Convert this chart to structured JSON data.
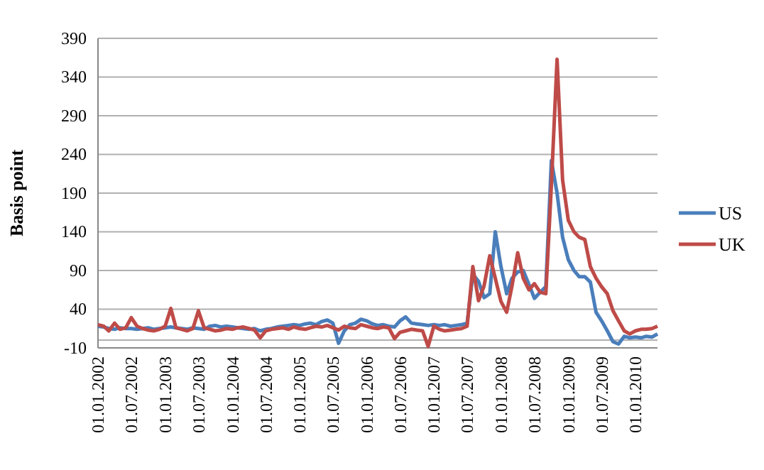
{
  "chart_data": {
    "type": "line",
    "ylabel": "Basis point",
    "ylim": [
      -10,
      390
    ],
    "yticks": [
      -10,
      {
        "value": 0,
        "label": null
      },
      40,
      90,
      140,
      190,
      240,
      290,
      340,
      390
    ],
    "grid": "y",
    "legend": "right",
    "xlim": [
      "2002-01",
      "2010-05"
    ],
    "xticks": [
      {
        "value": "2002-01-01",
        "label": "01.01.2002"
      },
      {
        "value": "2002-07-01",
        "label": "01.07.2002"
      },
      {
        "value": "2003-01-01",
        "label": "01.01.2003"
      },
      {
        "value": "2003-07-01",
        "label": "01.07.2003"
      },
      {
        "value": "2004-01-01",
        "label": "01.01.2004"
      },
      {
        "value": "2004-07-01",
        "label": "01.07.2004"
      },
      {
        "value": "2005-01-01",
        "label": "01.01.2005"
      },
      {
        "value": "2005-07-01",
        "label": "01.07.2005"
      },
      {
        "value": "2006-01-01",
        "label": "01.01.2006"
      },
      {
        "value": "2006-07-01",
        "label": "01.07.2006"
      },
      {
        "value": "2007-01-01",
        "label": "01.01.2007"
      },
      {
        "value": "2007-07-01",
        "label": "01.07.2007"
      },
      {
        "value": "2008-01-01",
        "label": "01.01.2008"
      },
      {
        "value": "2008-07-01",
        "label": "01.07.2008"
      },
      {
        "value": "2009-01-01",
        "label": "01.01.2009"
      },
      {
        "value": "2009-07-01",
        "label": "01.07.2009"
      },
      {
        "value": "2010-01-01",
        "label": "01.01.2010"
      }
    ],
    "x": [
      "2002-01",
      "2002-02",
      "2002-03",
      "2002-04",
      "2002-05",
      "2002-06",
      "2002-07",
      "2002-08",
      "2002-09",
      "2002-10",
      "2002-11",
      "2002-12",
      "2003-01",
      "2003-02",
      "2003-03",
      "2003-04",
      "2003-05",
      "2003-06",
      "2003-07",
      "2003-08",
      "2003-09",
      "2003-10",
      "2003-11",
      "2003-12",
      "2004-01",
      "2004-02",
      "2004-03",
      "2004-04",
      "2004-05",
      "2004-06",
      "2004-07",
      "2004-08",
      "2004-09",
      "2004-10",
      "2004-11",
      "2004-12",
      "2005-01",
      "2005-02",
      "2005-03",
      "2005-04",
      "2005-05",
      "2005-06",
      "2005-07",
      "2005-08",
      "2005-09",
      "2005-10",
      "2005-11",
      "2005-12",
      "2006-01",
      "2006-02",
      "2006-03",
      "2006-04",
      "2006-05",
      "2006-06",
      "2006-07",
      "2006-08",
      "2006-09",
      "2006-10",
      "2006-11",
      "2006-12",
      "2007-01",
      "2007-02",
      "2007-03",
      "2007-04",
      "2007-05",
      "2007-06",
      "2007-07",
      "2007-08",
      "2007-09",
      "2007-10",
      "2007-11",
      "2007-12",
      "2008-01",
      "2008-02",
      "2008-03",
      "2008-04",
      "2008-05",
      "2008-06",
      "2008-07",
      "2008-08",
      "2008-09",
      "2008-10",
      "2008-11",
      "2008-12",
      "2009-01",
      "2009-02",
      "2009-03",
      "2009-04",
      "2009-05",
      "2009-06",
      "2009-07",
      "2009-08",
      "2009-09",
      "2009-10",
      "2009-11",
      "2009-12",
      "2010-01",
      "2010-02",
      "2010-03",
      "2010-04",
      "2010-05"
    ],
    "series": [
      {
        "name": "US",
        "color": "#4a7ebb",
        "values": [
          18,
          17,
          15,
          14,
          16,
          15,
          15,
          14,
          15,
          16,
          14,
          15,
          16,
          17,
          16,
          15,
          14,
          16,
          15,
          14,
          18,
          19,
          17,
          18,
          17,
          16,
          15,
          14,
          15,
          12,
          14,
          15,
          17,
          18,
          19,
          20,
          19,
          21,
          22,
          20,
          24,
          26,
          22,
          -4,
          12,
          20,
          22,
          27,
          25,
          21,
          19,
          20,
          18,
          17,
          25,
          30,
          22,
          21,
          20,
          19,
          20,
          19,
          20,
          18,
          19,
          20,
          22,
          85,
          76,
          55,
          60,
          140,
          95,
          60,
          80,
          88,
          90,
          72,
          54,
          62,
          69,
          232,
          190,
          133,
          104,
          90,
          82,
          82,
          75,
          36,
          25,
          12,
          -2,
          -5,
          5,
          3,
          4,
          3,
          5,
          4,
          8
        ]
      },
      {
        "name": "UK",
        "color": "#be4b48",
        "values": [
          20,
          18,
          12,
          22,
          14,
          16,
          29,
          18,
          15,
          13,
          12,
          14,
          18,
          41,
          16,
          14,
          12,
          15,
          38,
          16,
          14,
          12,
          13,
          15,
          14,
          16,
          17,
          15,
          13,
          3,
          12,
          14,
          15,
          16,
          14,
          17,
          15,
          14,
          16,
          18,
          17,
          19,
          16,
          13,
          18,
          16,
          15,
          20,
          18,
          16,
          15,
          17,
          16,
          2,
          10,
          12,
          14,
          13,
          12,
          -8,
          18,
          14,
          12,
          13,
          14,
          15,
          18,
          95,
          51,
          70,
          109,
          80,
          50,
          36,
          70,
          113,
          80,
          65,
          73,
          62,
          60,
          200,
          363,
          207,
          155,
          140,
          133,
          130,
          95,
          80,
          69,
          60,
          38,
          25,
          12,
          8,
          12,
          14,
          14,
          15,
          18
        ]
      }
    ]
  }
}
